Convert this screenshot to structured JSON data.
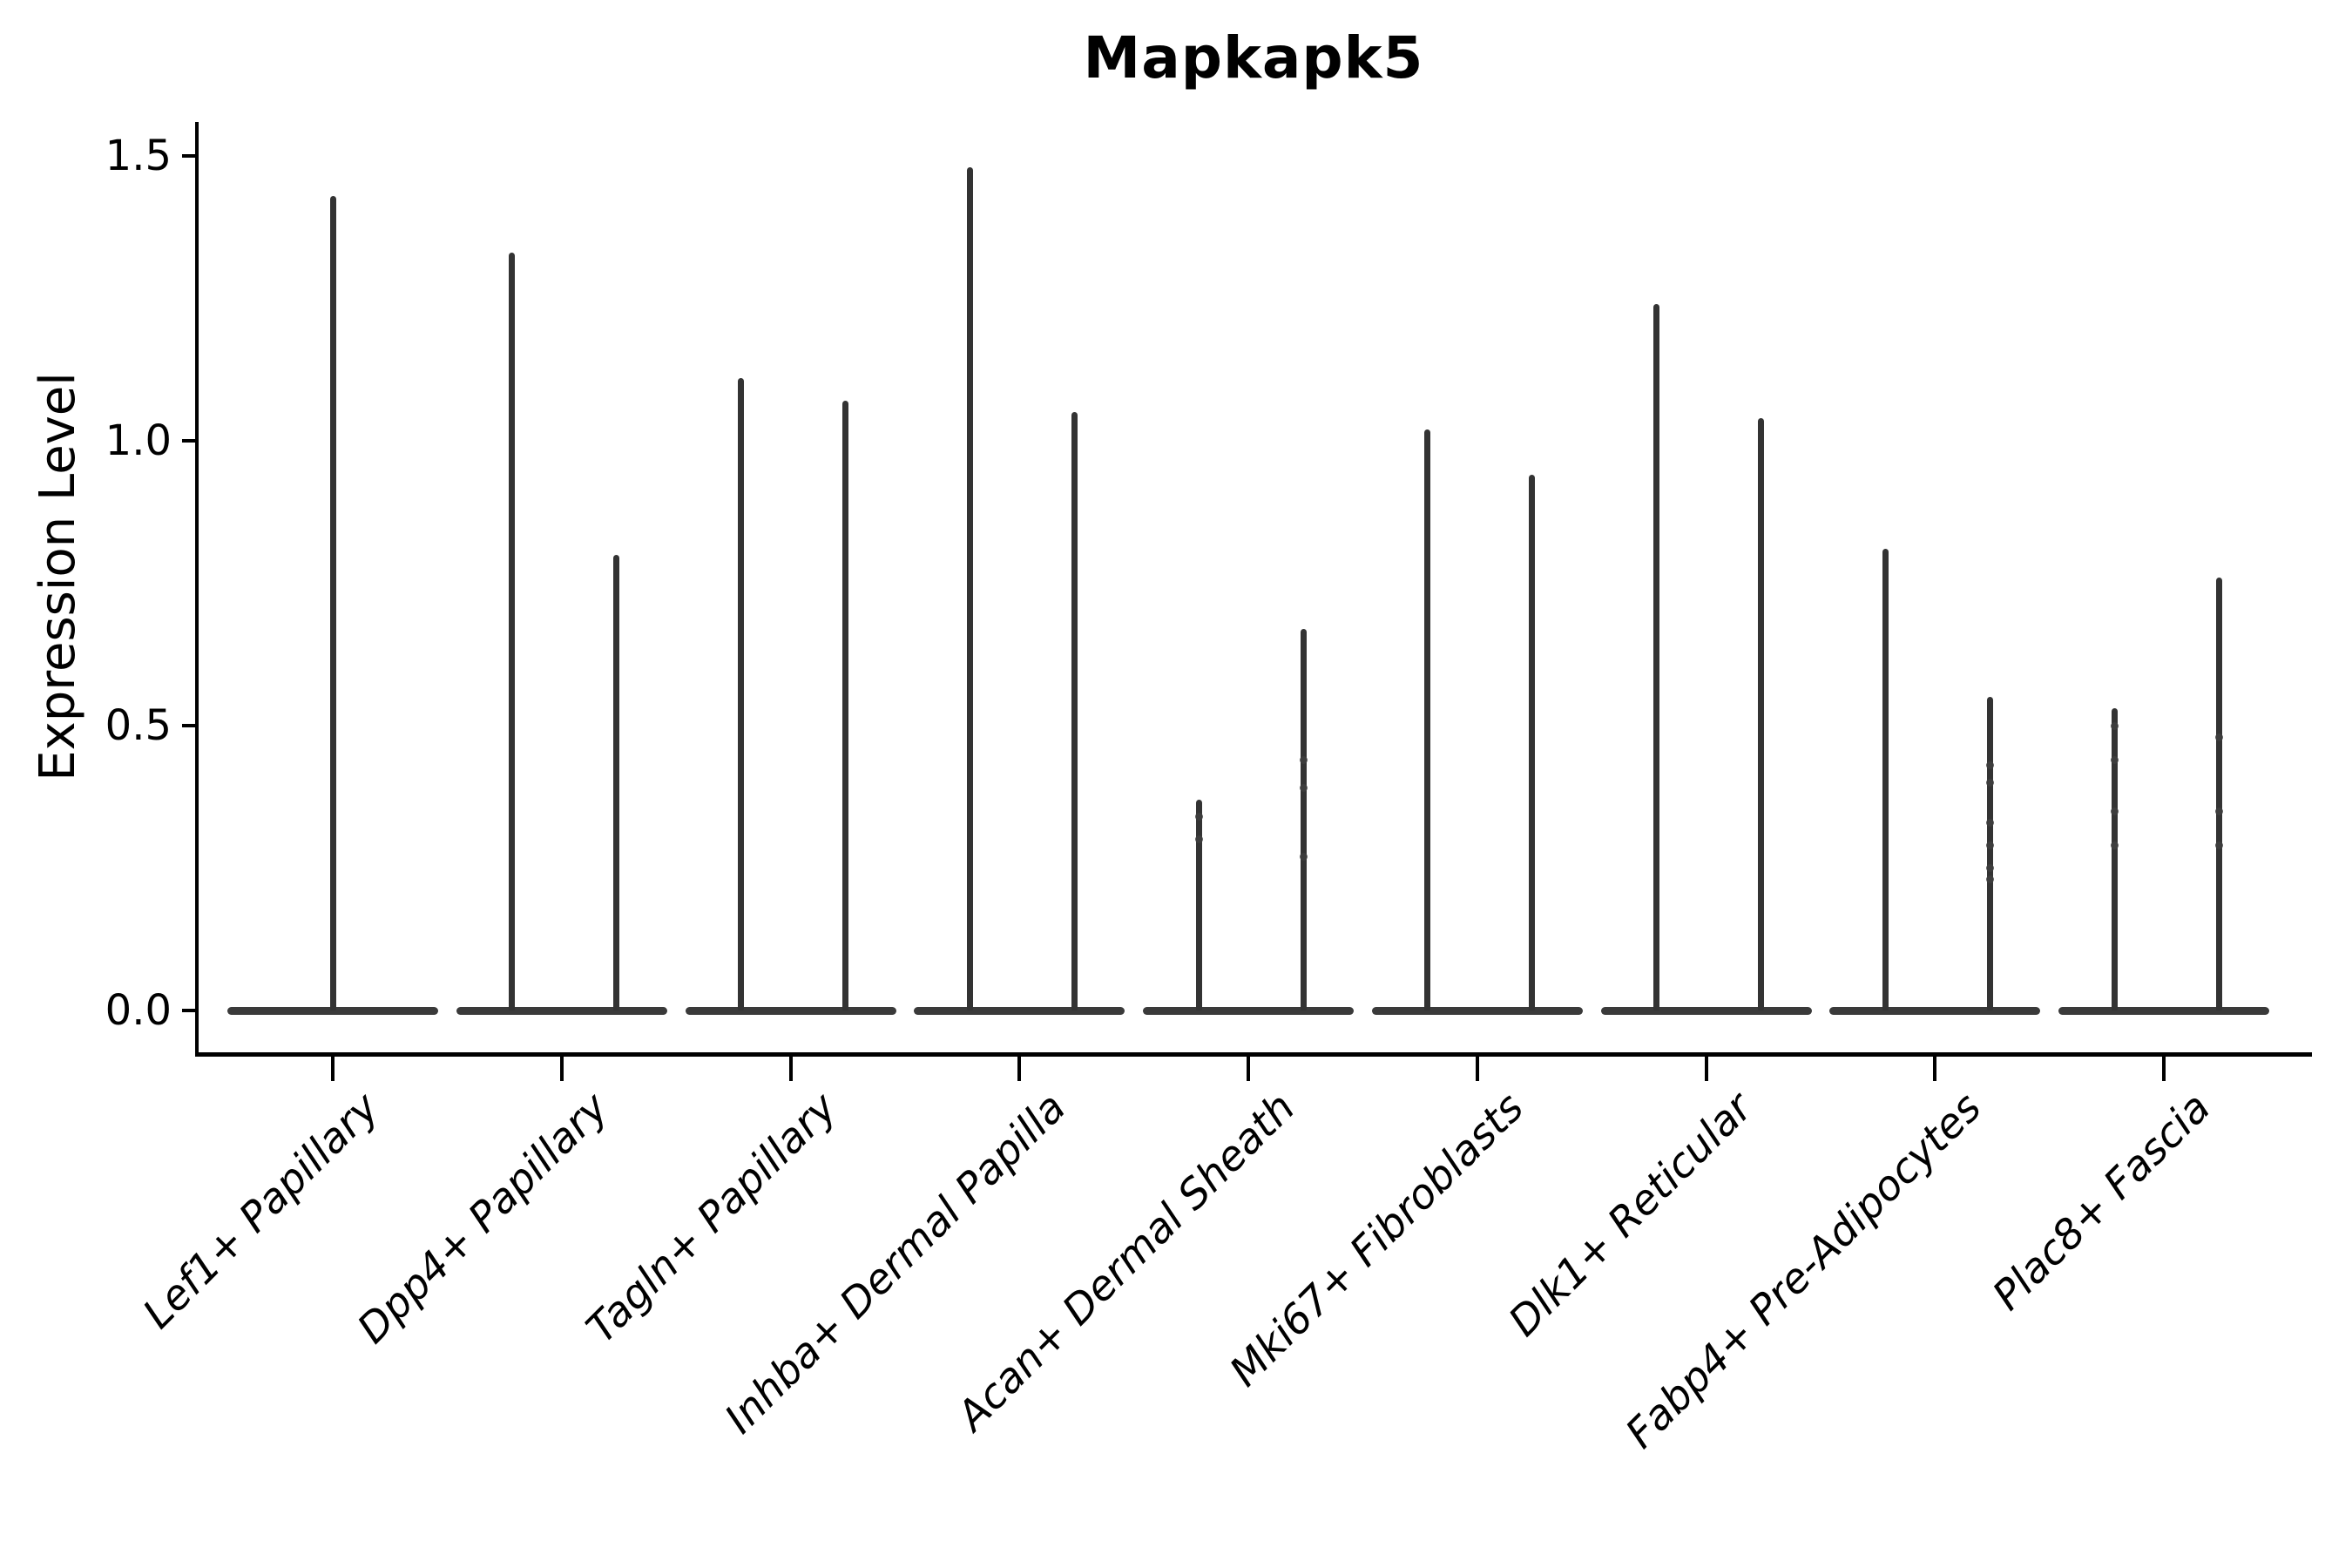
{
  "chart_data": {
    "type": "violin",
    "title": "Mapkapk5",
    "ylabel": "Expression Level",
    "xlabel": "",
    "yticks": [
      0.0,
      0.5,
      1.0,
      1.5
    ],
    "ytick_labels": [
      "0.0",
      "0.5",
      "1.0",
      "1.5"
    ],
    "ylim": [
      -0.07,
      1.56
    ],
    "grid": false,
    "legend_position": "none",
    "categories": [
      "Lef1+ Papillary",
      "Dpp4+ Papillary",
      "Tagln+ Papillary",
      "Inhba+ Dermal Papilla",
      "Acan+ Dermal Sheath",
      "Mki67+ Fibroblasts",
      "Dlk1+ Reticular",
      "Fabp4+ Pre-Adipocytes",
      "Plac8+ Fascia"
    ],
    "violins": [
      {
        "category": "Lef1+ Papillary",
        "cat_index": 0,
        "slot": "center",
        "max_expression": 1.43,
        "jitter_points": []
      },
      {
        "category": "Dpp4+ Papillary",
        "cat_index": 1,
        "slot": "left",
        "max_expression": 1.33,
        "jitter_points": []
      },
      {
        "category": "Dpp4+ Papillary",
        "cat_index": 1,
        "slot": "right",
        "max_expression": 0.8,
        "jitter_points": []
      },
      {
        "category": "Tagln+ Papillary",
        "cat_index": 2,
        "slot": "left",
        "max_expression": 1.11,
        "jitter_points": []
      },
      {
        "category": "Tagln+ Papillary",
        "cat_index": 2,
        "slot": "right",
        "max_expression": 1.07,
        "jitter_points": []
      },
      {
        "category": "Inhba+ Dermal Papilla",
        "cat_index": 3,
        "slot": "left",
        "max_expression": 1.48,
        "jitter_points": []
      },
      {
        "category": "Inhba+ Dermal Papilla",
        "cat_index": 3,
        "slot": "right",
        "max_expression": 1.05,
        "jitter_points": []
      },
      {
        "category": "Acan+ Dermal Sheath",
        "cat_index": 4,
        "slot": "left",
        "max_expression": 0.37,
        "jitter_points": [
          0.34,
          0.3
        ]
      },
      {
        "category": "Acan+ Dermal Sheath",
        "cat_index": 4,
        "slot": "right",
        "max_expression": 0.67,
        "jitter_points": [
          0.44,
          0.39,
          0.27
        ]
      },
      {
        "category": "Mki67+ Fibroblasts",
        "cat_index": 5,
        "slot": "left",
        "max_expression": 1.02,
        "jitter_points": []
      },
      {
        "category": "Mki67+ Fibroblasts",
        "cat_index": 5,
        "slot": "right",
        "max_expression": 0.94,
        "jitter_points": []
      },
      {
        "category": "Dlk1+ Reticular",
        "cat_index": 6,
        "slot": "left",
        "max_expression": 1.24,
        "jitter_points": []
      },
      {
        "category": "Dlk1+ Reticular",
        "cat_index": 6,
        "slot": "right",
        "max_expression": 1.04,
        "jitter_points": []
      },
      {
        "category": "Fabp4+ Pre-Adipocytes",
        "cat_index": 7,
        "slot": "left",
        "max_expression": 0.81,
        "jitter_points": []
      },
      {
        "category": "Fabp4+ Pre-Adipocytes",
        "cat_index": 7,
        "slot": "right",
        "max_expression": 0.55,
        "jitter_points": [
          0.43,
          0.4,
          0.33,
          0.29,
          0.25,
          0.23
        ]
      },
      {
        "category": "Plac8+ Fascia",
        "cat_index": 8,
        "slot": "left",
        "max_expression": 0.53,
        "jitter_points": [
          0.5,
          0.44,
          0.35,
          0.29
        ]
      },
      {
        "category": "Plac8+ Fascia",
        "cat_index": 8,
        "slot": "right",
        "max_expression": 0.76,
        "jitter_points": [
          0.48,
          0.35,
          0.29
        ]
      }
    ]
  },
  "styles": {
    "background": "#ffffff",
    "axis_color": "#000000",
    "text_color": "#000000",
    "violin_stroke": "#333333",
    "violin_base": "#3a3a3a",
    "jitter_dot": "#404040"
  }
}
